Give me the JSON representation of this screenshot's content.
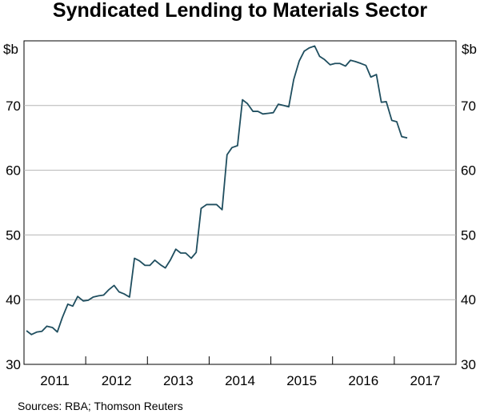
{
  "chart_data": {
    "type": "line",
    "title": "Syndicated Lending to Materials Sector",
    "unit_left": "$b",
    "unit_right": "$b",
    "source": "Sources: RBA; Thomson Reuters",
    "xlim": [
      2010.5,
      2017.5
    ],
    "ylim": [
      30,
      80
    ],
    "x_tick_labels": [
      "2011",
      "2012",
      "2013",
      "2014",
      "2015",
      "2016",
      "2017"
    ],
    "x_tick_values": [
      2011,
      2012,
      2013,
      2014,
      2015,
      2016,
      2017
    ],
    "x_boundaries": [
      2011.5,
      2012.5,
      2013.5,
      2014.5,
      2015.5,
      2016.5
    ],
    "y_ticks": [
      30,
      40,
      50,
      60,
      70
    ],
    "grid": true,
    "line_color": "#1f4e5f",
    "series": [
      {
        "x": [
          2010.54,
          2010.62,
          2010.71,
          2010.79,
          2010.87,
          2010.96,
          2011.04,
          2011.12,
          2011.21,
          2011.29,
          2011.37,
          2011.46,
          2011.54,
          2011.62,
          2011.71,
          2011.79,
          2011.87,
          2011.96,
          2012.04,
          2012.12,
          2012.21,
          2012.29,
          2012.37,
          2012.46,
          2012.54,
          2012.62,
          2012.71,
          2012.79,
          2012.87,
          2012.96,
          2013.04,
          2013.12,
          2013.21,
          2013.29,
          2013.37,
          2013.46,
          2013.54,
          2013.62,
          2013.71,
          2013.79,
          2013.87,
          2013.96,
          2014.04,
          2014.12,
          2014.21,
          2014.29,
          2014.37,
          2014.46,
          2014.54,
          2014.62,
          2014.71,
          2014.79,
          2014.87,
          2014.96,
          2015.04,
          2015.12,
          2015.21,
          2015.29,
          2015.37,
          2015.46,
          2015.54,
          2015.62,
          2015.71,
          2015.79,
          2015.87,
          2015.96,
          2016.04,
          2016.12,
          2016.21,
          2016.29,
          2016.37,
          2016.46,
          2016.54,
          2016.62,
          2016.71,
          2016.79
        ],
        "values": [
          35.2,
          34.6,
          35.0,
          35.1,
          35.9,
          35.7,
          35.0,
          37.2,
          39.3,
          39.0,
          40.5,
          39.8,
          39.9,
          40.4,
          40.6,
          40.7,
          41.5,
          42.2,
          41.2,
          40.9,
          40.4,
          46.4,
          46.0,
          45.3,
          45.3,
          46.1,
          45.4,
          44.9,
          46.1,
          47.8,
          47.2,
          47.2,
          46.4,
          47.3,
          54.1,
          54.7,
          54.7,
          54.7,
          53.9,
          62.4,
          63.5,
          63.8,
          70.9,
          70.3,
          69.1,
          69.1,
          68.7,
          68.8,
          68.9,
          70.2,
          70.0,
          69.8,
          74.0,
          76.9,
          78.4,
          78.9,
          79.2,
          77.6,
          77.1,
          76.3,
          76.5,
          76.5,
          76.1,
          77.0,
          76.8,
          76.5,
          76.2,
          74.4,
          74.8,
          70.5,
          70.6,
          67.7,
          67.5,
          65.2,
          65.0,
          null
        ]
      }
    ]
  }
}
